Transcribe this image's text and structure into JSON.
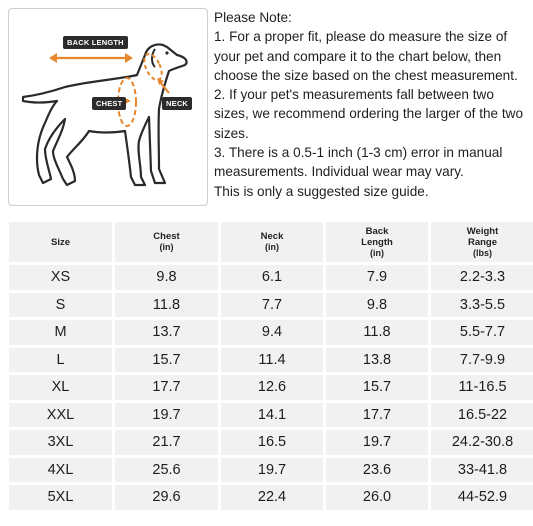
{
  "diagram": {
    "labels": {
      "back_length": "BACK LENGTH",
      "chest": "CHEST",
      "neck": "NECK"
    },
    "colors": {
      "dog_outline": "#2a2a2a",
      "arrow": "#e8862e",
      "tag_bg": "#2b2b2b"
    }
  },
  "note": {
    "lines": [
      "Please Note:",
      "1. For a proper fit, please do measure the size of your pet and compare it to the chart below, then choose the size based on the chest measurement.",
      "2. If your pet's measurements fall between two sizes, we recommend ordering the larger of the two sizes.",
      "3. There is a 0.5-1 inch (1-3 cm) error in manual measurements. Individual wear may vary.",
      "This is only a suggested size guide."
    ]
  },
  "table": {
    "headers": [
      {
        "label": "Size",
        "unit": ""
      },
      {
        "label": "Chest",
        "unit": "(in)"
      },
      {
        "label": "Neck",
        "unit": "(in)"
      },
      {
        "label": "Back Length",
        "unit": "(in)"
      },
      {
        "label": "Weight Range",
        "unit": "(lbs)"
      }
    ],
    "rows": [
      [
        "XS",
        "9.8",
        "6.1",
        "7.9",
        "2.2-3.3"
      ],
      [
        "S",
        "11.8",
        "7.7",
        "9.8",
        "3.3-5.5"
      ],
      [
        "M",
        "13.7",
        "9.4",
        "11.8",
        "5.5-7.7"
      ],
      [
        "L",
        "15.7",
        "11.4",
        "13.8",
        "7.7-9.9"
      ],
      [
        "XL",
        "17.7",
        "12.6",
        "15.7",
        "11-16.5"
      ],
      [
        "XXL",
        "19.7",
        "14.1",
        "17.7",
        "16.5-22"
      ],
      [
        "3XL",
        "21.7",
        "16.5",
        "19.7",
        "24.2-30.8"
      ],
      [
        "4XL",
        "25.6",
        "19.7",
        "23.6",
        "33-41.8"
      ],
      [
        "5XL",
        "29.6",
        "22.4",
        "26.0",
        "44-52.9"
      ]
    ]
  }
}
